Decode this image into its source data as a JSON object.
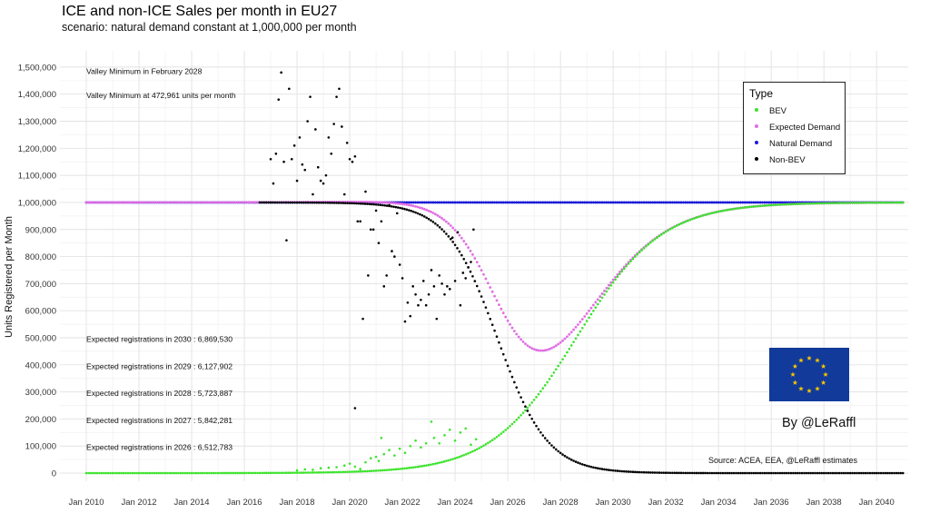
{
  "title": "ICE and non-ICE Sales per month in EU27",
  "subtitle": "scenario: natural demand constant at 1,000,000 per month",
  "byline": "By @LeRaffl",
  "source": "Source: ACEA, EEA, @LeRaffl estimates",
  "flag": {
    "bg_color": "#113a9b",
    "star_color": "#f5c400",
    "icon": "eu-flag-icon"
  },
  "chart_data": {
    "type": "scatter",
    "ylabel": "Units Registered per Month",
    "xlabel": "",
    "xlim": [
      2009.0,
      2041.2
    ],
    "ylim": [
      -30000,
      1560000
    ],
    "grid": true,
    "x_ticks": [
      2010,
      2012,
      2014,
      2016,
      2018,
      2020,
      2022,
      2024,
      2026,
      2028,
      2030,
      2032,
      2034,
      2036,
      2038,
      2040
    ],
    "x_tick_labels": [
      "Jan 2010",
      "Jan 2012",
      "Jan 2014",
      "Jan 2016",
      "Jan 2018",
      "Jan 2020",
      "Jan 2022",
      "Jan 2024",
      "Jan 2026",
      "Jan 2028",
      "Jan 2030",
      "Jan 2032",
      "Jan 2034",
      "Jan 2036",
      "Jan 2038",
      "Jan 2040"
    ],
    "y_ticks": [
      0,
      100000,
      200000,
      300000,
      400000,
      500000,
      600000,
      700000,
      800000,
      900000,
      1000000,
      1100000,
      1200000,
      1300000,
      1400000,
      1500000
    ],
    "y_tick_labels": [
      "0",
      "100,000",
      "200,000",
      "300,000",
      "400,000",
      "500,000",
      "600,000",
      "700,000",
      "800,000",
      "900,000",
      "1,000,000",
      "1,100,000",
      "1,200,000",
      "1,300,000",
      "1,400,000",
      "1,500,000"
    ],
    "legend": {
      "title": "Type",
      "position": "top-right",
      "items": [
        {
          "name": "BEV",
          "color": "#3be32b"
        },
        {
          "name": "Expected Demand",
          "color": "#e06ee3"
        },
        {
          "name": "Natural Demand",
          "color": "#1a1ad6"
        },
        {
          "name": "Non-BEV",
          "color": "#000000"
        }
      ]
    },
    "model": {
      "natural_demand": 1000000,
      "start": 2010.0,
      "end": 2041.0,
      "bev_logistic": {
        "midpoint": 2028.6,
        "rate": 0.62
      },
      "nonbev_logistic": {
        "midpoint": 2025.6,
        "rate": 1.05
      },
      "valley_year": 2028.1,
      "valley_value": 472961
    },
    "series": [
      {
        "name": "Non-BEV",
        "color": "#000000",
        "observed": [
          [
            2017.0,
            1160000
          ],
          [
            2017.1,
            1070000
          ],
          [
            2017.2,
            1180000
          ],
          [
            2017.3,
            1380000
          ],
          [
            2017.4,
            1480000
          ],
          [
            2017.5,
            1150000
          ],
          [
            2017.6,
            860000
          ],
          [
            2017.7,
            1420000
          ],
          [
            2017.8,
            1160000
          ],
          [
            2017.9,
            1210000
          ],
          [
            2018.0,
            1080000
          ],
          [
            2018.1,
            1240000
          ],
          [
            2018.2,
            1140000
          ],
          [
            2018.3,
            1120000
          ],
          [
            2018.4,
            1300000
          ],
          [
            2018.5,
            1390000
          ],
          [
            2018.6,
            1030000
          ],
          [
            2018.7,
            1270000
          ],
          [
            2018.8,
            1130000
          ],
          [
            2018.9,
            1080000
          ],
          [
            2019.0,
            1070000
          ],
          [
            2019.1,
            1100000
          ],
          [
            2019.2,
            1240000
          ],
          [
            2019.3,
            1180000
          ],
          [
            2019.4,
            1290000
          ],
          [
            2019.5,
            1390000
          ],
          [
            2019.6,
            1420000
          ],
          [
            2019.7,
            1280000
          ],
          [
            2019.8,
            1030000
          ],
          [
            2019.9,
            1220000
          ],
          [
            2020.0,
            1160000
          ],
          [
            2020.1,
            1150000
          ],
          [
            2020.2,
            1170000
          ],
          [
            2020.3,
            930000
          ],
          [
            2020.4,
            930000
          ],
          [
            2020.5,
            570000
          ],
          [
            2020.6,
            1040000
          ],
          [
            2020.7,
            730000
          ],
          [
            2020.8,
            900000
          ],
          [
            2020.9,
            900000
          ],
          [
            2021.0,
            970000
          ],
          [
            2021.1,
            850000
          ],
          [
            2021.2,
            930000
          ],
          [
            2021.3,
            690000
          ],
          [
            2021.4,
            730000
          ],
          [
            2021.5,
            990000
          ],
          [
            2021.6,
            820000
          ],
          [
            2021.7,
            800000
          ],
          [
            2021.8,
            960000
          ],
          [
            2021.9,
            770000
          ],
          [
            2022.0,
            720000
          ],
          [
            2022.1,
            560000
          ],
          [
            2022.2,
            630000
          ],
          [
            2022.3,
            580000
          ],
          [
            2022.4,
            690000
          ],
          [
            2022.5,
            660000
          ],
          [
            2022.6,
            620000
          ],
          [
            2022.7,
            640000
          ],
          [
            2022.8,
            710000
          ],
          [
            2022.9,
            620000
          ],
          [
            2023.0,
            660000
          ],
          [
            2023.1,
            750000
          ],
          [
            2023.2,
            690000
          ],
          [
            2023.3,
            570000
          ],
          [
            2023.4,
            730000
          ],
          [
            2023.5,
            700000
          ],
          [
            2023.6,
            660000
          ],
          [
            2023.7,
            690000
          ],
          [
            2023.8,
            680000
          ],
          [
            2023.9,
            870000
          ],
          [
            2024.0,
            710000
          ],
          [
            2024.1,
            890000
          ],
          [
            2024.2,
            620000
          ],
          [
            2024.3,
            740000
          ],
          [
            2024.4,
            720000
          ],
          [
            2024.5,
            760000
          ],
          [
            2024.6,
            780000
          ],
          [
            2024.7,
            900000
          ],
          [
            2020.2,
            240000
          ]
        ]
      },
      {
        "name": "BEV",
        "color": "#3be32b",
        "observed": [
          [
            2018.0,
            10000
          ],
          [
            2018.3,
            14000
          ],
          [
            2018.6,
            12000
          ],
          [
            2018.9,
            18000
          ],
          [
            2019.2,
            20000
          ],
          [
            2019.5,
            22000
          ],
          [
            2019.8,
            28000
          ],
          [
            2020.0,
            35000
          ],
          [
            2020.2,
            24000
          ],
          [
            2020.4,
            15000
          ],
          [
            2020.6,
            40000
          ],
          [
            2020.8,
            55000
          ],
          [
            2021.0,
            60000
          ],
          [
            2021.1,
            45000
          ],
          [
            2021.2,
            130000
          ],
          [
            2021.3,
            70000
          ],
          [
            2021.5,
            85000
          ],
          [
            2021.7,
            65000
          ],
          [
            2021.9,
            90000
          ],
          [
            2022.1,
            75000
          ],
          [
            2022.3,
            100000
          ],
          [
            2022.5,
            120000
          ],
          [
            2022.7,
            95000
          ],
          [
            2022.9,
            110000
          ],
          [
            2023.1,
            190000
          ],
          [
            2023.2,
            130000
          ],
          [
            2023.4,
            110000
          ],
          [
            2023.6,
            140000
          ],
          [
            2023.8,
            160000
          ],
          [
            2024.0,
            120000
          ],
          [
            2024.2,
            150000
          ],
          [
            2024.4,
            165000
          ],
          [
            2024.6,
            105000
          ],
          [
            2024.8,
            125000
          ]
        ]
      }
    ],
    "annotations": [
      "Valley Minimum in February 2028",
      "Valley Minimum at 472,961 units per month",
      "Expected registrations in 2030 : 6,869,530",
      "Expected registrations in 2029 : 6,127,902",
      "Expected registrations in 2028 : 5,723,887",
      "Expected registrations in 2027 : 5,842,281",
      "Expected registrations in 2026 : 6,512,783"
    ]
  }
}
